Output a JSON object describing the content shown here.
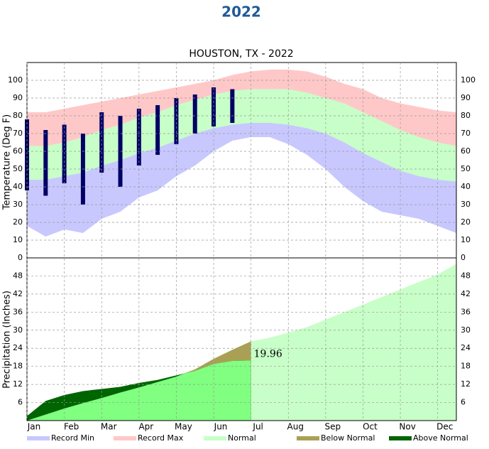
{
  "header": "2022",
  "legend": [
    {
      "name": "Record Min",
      "color": "#c8c8ff"
    },
    {
      "name": "Record Max",
      "color": "#ffc8c8"
    },
    {
      "name": "Normal",
      "color": "#c8ffc8"
    },
    {
      "name": "Below Normal",
      "color": "#aaa055"
    },
    {
      "name": "Above Normal",
      "color": "#006400"
    }
  ],
  "chart_data": [
    {
      "type": "band",
      "title": "HOUSTON, TX - 2022",
      "y_label": "Temperature (Deg F)",
      "categories": [
        "Jan",
        null,
        "Feb",
        null,
        "Mar",
        null,
        "Apr",
        null,
        "May",
        null,
        "Jun",
        null,
        "Jul",
        null,
        "Aug",
        null,
        "Sep",
        null,
        "Oct",
        null,
        "Nov",
        null,
        "Dec",
        null
      ],
      "record_max": [
        82,
        82,
        84,
        86,
        88,
        90,
        92,
        94,
        96,
        98,
        100,
        103,
        105,
        106,
        106,
        105,
        102,
        98,
        95,
        90,
        87,
        85,
        83,
        82
      ],
      "normal_max": [
        63,
        63,
        65,
        68,
        72,
        75,
        79,
        82,
        86,
        89,
        92,
        94,
        95,
        95,
        95,
        93,
        90,
        87,
        82,
        77,
        72,
        68,
        65,
        63
      ],
      "normal_min": [
        44,
        44,
        46,
        48,
        52,
        55,
        59,
        62,
        66,
        70,
        73,
        75,
        76,
        76,
        75,
        73,
        70,
        65,
        59,
        54,
        49,
        46,
        44,
        43
      ],
      "record_min": [
        18,
        12,
        16,
        14,
        22,
        26,
        34,
        38,
        46,
        52,
        60,
        66,
        68,
        68,
        64,
        58,
        50,
        40,
        32,
        26,
        24,
        22,
        18,
        14
      ],
      "observed_high": [
        78,
        72,
        75,
        70,
        82,
        80,
        84,
        86,
        90,
        92,
        96,
        95,
        null,
        null,
        null,
        null,
        null,
        null,
        null,
        null,
        null,
        null,
        null,
        null
      ],
      "observed_low": [
        38,
        35,
        42,
        30,
        48,
        40,
        52,
        58,
        64,
        70,
        74,
        76,
        null,
        null,
        null,
        null,
        null,
        null,
        null,
        null,
        null,
        null,
        null,
        null
      ],
      "observed_color": "#000066",
      "ylim": [
        0,
        110
      ],
      "yticks": [
        0,
        10,
        20,
        30,
        40,
        50,
        60,
        70,
        80,
        90,
        100
      ],
      "grid": true
    },
    {
      "type": "cumulative",
      "y_label": "Precipitation (Inches)",
      "normal": [
        0,
        2,
        4,
        5.8,
        7.5,
        9.3,
        11,
        12.8,
        14.6,
        17,
        20.5,
        23.5,
        26.3,
        27.5,
        29.2,
        31,
        33.5,
        36,
        38.5,
        41,
        43.5,
        46,
        48.5,
        52
      ],
      "observed": [
        1.5,
        6.5,
        8.5,
        9.8,
        10.5,
        11.2,
        12.5,
        13.5,
        15,
        16.5,
        18.8,
        19.8,
        19.96,
        null,
        null,
        null,
        null,
        null,
        null,
        null,
        null,
        null,
        null,
        null
      ],
      "observed_color": "#80ff80",
      "ylim": [
        0,
        54
      ],
      "yticks": [
        6,
        12,
        18,
        24,
        30,
        36,
        42,
        48
      ],
      "grid": true
    }
  ]
}
